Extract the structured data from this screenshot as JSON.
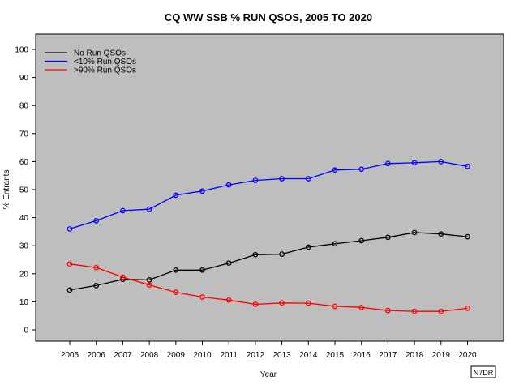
{
  "chart_data": {
    "type": "line",
    "title": "CQ WW SSB % RUN QSOS, 2005 TO 2020",
    "xlabel": "Year",
    "ylabel": "% Entrants",
    "categories": [
      "2005",
      "2006",
      "2007",
      "2008",
      "2009",
      "2010",
      "2011",
      "2012",
      "2013",
      "2014",
      "2015",
      "2016",
      "2017",
      "2018",
      "2019",
      "2020"
    ],
    "ylim": [
      0,
      100
    ],
    "yticks": [
      0,
      10,
      20,
      30,
      40,
      50,
      60,
      70,
      80,
      90,
      100
    ],
    "grid": false,
    "legend_position": "top-left",
    "series": [
      {
        "name": "No Run QSOs",
        "color": "#000000",
        "values": [
          14.2,
          15.8,
          18.0,
          17.8,
          21.3,
          21.3,
          23.8,
          26.8,
          27.0,
          29.5,
          30.7,
          31.8,
          33.0,
          34.7,
          34.2,
          33.2
        ]
      },
      {
        "name": "<10% Run QSOs",
        "color": "#0000ff",
        "values": [
          36.0,
          38.9,
          42.5,
          43.0,
          48.0,
          49.5,
          51.7,
          53.3,
          53.9,
          53.9,
          57.0,
          57.3,
          59.3,
          59.6,
          60.0,
          58.3
        ]
      },
      {
        "name": ">90% Run QSOs",
        "color": "#ff0000",
        "values": [
          23.5,
          22.2,
          18.8,
          16.0,
          13.4,
          11.7,
          10.6,
          9.1,
          9.6,
          9.5,
          8.4,
          8.0,
          6.9,
          6.6,
          6.6,
          7.7
        ]
      }
    ],
    "plot_background": "#bebebe",
    "credit": "N7DR"
  }
}
